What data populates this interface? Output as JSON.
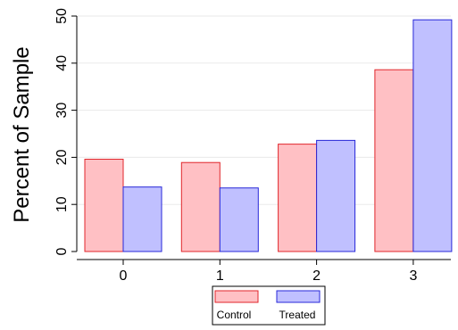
{
  "chart_data": {
    "type": "bar",
    "title": "",
    "xlabel": "",
    "ylabel": "Percent of Sample",
    "categories": [
      "0",
      "1",
      "2",
      "3"
    ],
    "series": [
      {
        "name": "Control",
        "values": [
          19.6,
          18.9,
          22.8,
          38.6
        ],
        "fill": "#ffc0c4",
        "stroke": "#e0262b"
      },
      {
        "name": "Treated",
        "values": [
          13.7,
          13.5,
          23.6,
          49.2
        ],
        "fill": "#c0c0ff",
        "stroke": "#2727d8"
      }
    ],
    "ylim": [
      0,
      50
    ],
    "yticks": [
      "0",
      "10",
      "20",
      "30",
      "40",
      "50"
    ],
    "grid": true,
    "legend": "bottom"
  }
}
